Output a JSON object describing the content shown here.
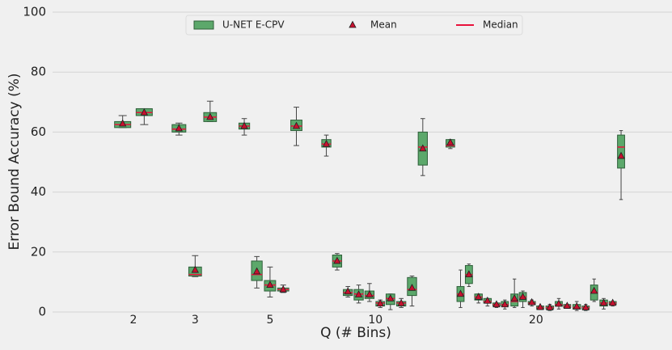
{
  "chart_data": {
    "type": "box",
    "xlabel": "Q (# Bins)",
    "ylabel": "Error Bound Accuracy (%)",
    "xlim": [
      -2.6,
      100.8
    ],
    "xticks": [
      {
        "value": 10.9,
        "label": "2"
      },
      {
        "value": 21.2,
        "label": "3"
      },
      {
        "value": 33.7,
        "label": "5"
      },
      {
        "value": 51.3,
        "label": "10"
      },
      {
        "value": 78.1,
        "label": "20"
      }
    ],
    "ylim": [
      0,
      100
    ],
    "yticks": [
      0,
      20,
      40,
      60,
      80,
      100
    ],
    "grid": true,
    "legend": "upper center",
    "legend_labels": {
      "box": "U-NET E-CPV",
      "mean": "Mean",
      "median": "Median"
    },
    "colors": {
      "box": "#5ca86b",
      "edge": "#2f5f3a",
      "mean": "#c8102e",
      "median": "#e8123c",
      "whisker": "#444444"
    },
    "x": [
      9.1,
      12.7,
      18.5,
      21.2,
      23.7,
      29.4,
      31.5,
      33.7,
      35.9,
      38.1,
      43.1,
      44.9,
      46.7,
      48.5,
      50.3,
      52.1,
      53.8,
      55.6,
      57.4,
      59.2,
      63.8,
      65.5,
      66.9,
      68.5,
      70.0,
      71.5,
      72.9,
      74.5,
      75.9,
      77.4,
      78.8,
      80.4,
      81.9,
      83.3,
      84.9,
      86.4,
      87.8,
      89.4,
      90.9,
      92.3
    ],
    "whislo": [
      61.5,
      62.5,
      59,
      11.8,
      63.5,
      59,
      8,
      5,
      6.5,
      55.5,
      52,
      14,
      5,
      3,
      3.5,
      1.5,
      0.8,
      1.5,
      2,
      45.5,
      54.5,
      1.5,
      8.5,
      3,
      2,
      1.5,
      1,
      1.5,
      1.5,
      2,
      0.8,
      0.5,
      1,
      1.5,
      0.5,
      0.5,
      3.5,
      1,
      2,
      37.5
    ],
    "q1": [
      61.5,
      65.5,
      60,
      12,
      63.5,
      61,
      10.5,
      7,
      7,
      60.5,
      55,
      15,
      5.5,
      4,
      4.5,
      2,
      2.5,
      2,
      5.5,
      49,
      55,
      3.5,
      9.5,
      4,
      3,
      2,
      2,
      2,
      3.5,
      2.5,
      1,
      1,
      2,
      1.5,
      1,
      1,
      4,
      2,
      2.5,
      48
    ],
    "median": [
      62.5,
      66.5,
      61,
      12.5,
      65,
      62,
      12.5,
      9,
      7.5,
      62,
      56,
      17,
      6.5,
      6,
      5.5,
      3,
      4.5,
      3,
      7.5,
      55,
      55.5,
      6,
      12.5,
      5,
      3.5,
      2.5,
      2.5,
      3.5,
      5,
      3,
      1.5,
      1.5,
      2.5,
      2,
      1.5,
      1.5,
      6.5,
      3,
      3,
      55
    ],
    "q3": [
      63.5,
      67.8,
      62.5,
      15,
      66.5,
      63,
      17,
      10.5,
      8,
      64,
      57.5,
      19,
      7.5,
      7.5,
      7,
      3.5,
      6,
      3.5,
      11.5,
      60,
      57.5,
      8.5,
      15.5,
      6,
      4.5,
      3,
      3.5,
      6,
      6.5,
      3.5,
      2,
      2,
      3.5,
      2.5,
      2.5,
      2,
      9,
      4,
      3.5,
      59
    ],
    "whishi": [
      65.5,
      67.8,
      63,
      18.8,
      70.3,
      64.5,
      18.5,
      15,
      9,
      68.3,
      59,
      19.5,
      8.5,
      9,
      9.5,
      4,
      6,
      4.5,
      12,
      64.5,
      57.5,
      14,
      16,
      6,
      4.5,
      3,
      4,
      11,
      7,
      4,
      2,
      2.5,
      4.5,
      2.5,
      3.5,
      2.5,
      11,
      4.5,
      3.5,
      60.5
    ],
    "mean": [
      62.8,
      66.5,
      61.2,
      14,
      65,
      62,
      13.5,
      9,
      7.5,
      62,
      56,
      17,
      6.8,
      5.8,
      5.8,
      2.8,
      4.5,
      2.9,
      8,
      54.5,
      56.5,
      6,
      12.5,
      5,
      3.7,
      2.5,
      2.5,
      4.5,
      5,
      3.2,
      1.6,
      1.5,
      2.7,
      2,
      1.8,
      1.5,
      7,
      3,
      3,
      52
    ]
  }
}
